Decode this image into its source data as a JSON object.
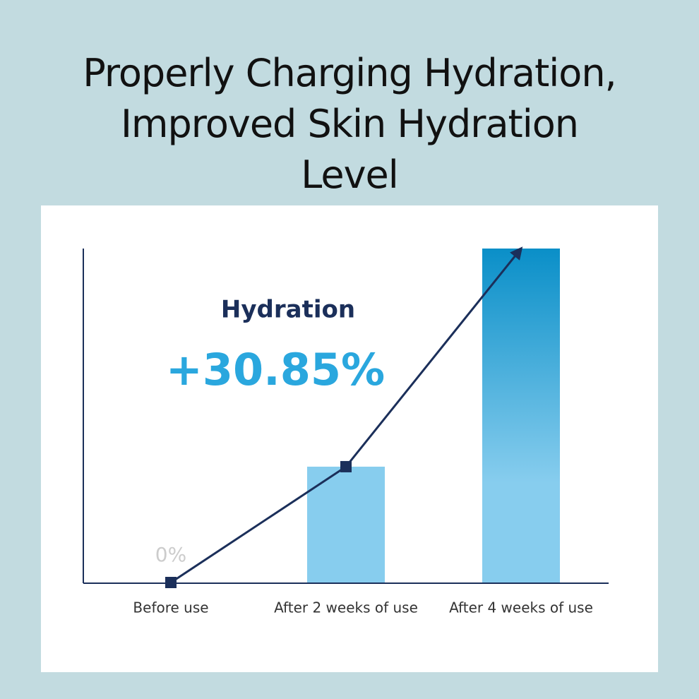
{
  "chart_data": {
    "type": "bar",
    "title": "Properly Charging Hydration, Improved Skin Hydration Level",
    "annotation": "Hydration",
    "categories": [
      "Before use",
      "After 2 weeks of use",
      "After 4 weeks of use"
    ],
    "values": [
      0,
      10.7,
      30.85
    ],
    "value_labels": [
      "0%",
      null,
      "+30.85%"
    ],
    "colors": [
      "#cfe8f5",
      "#87cdee",
      "#0a8fc8"
    ],
    "line_color": "#1b2f5a",
    "ylim": [
      0,
      30.85
    ]
  }
}
